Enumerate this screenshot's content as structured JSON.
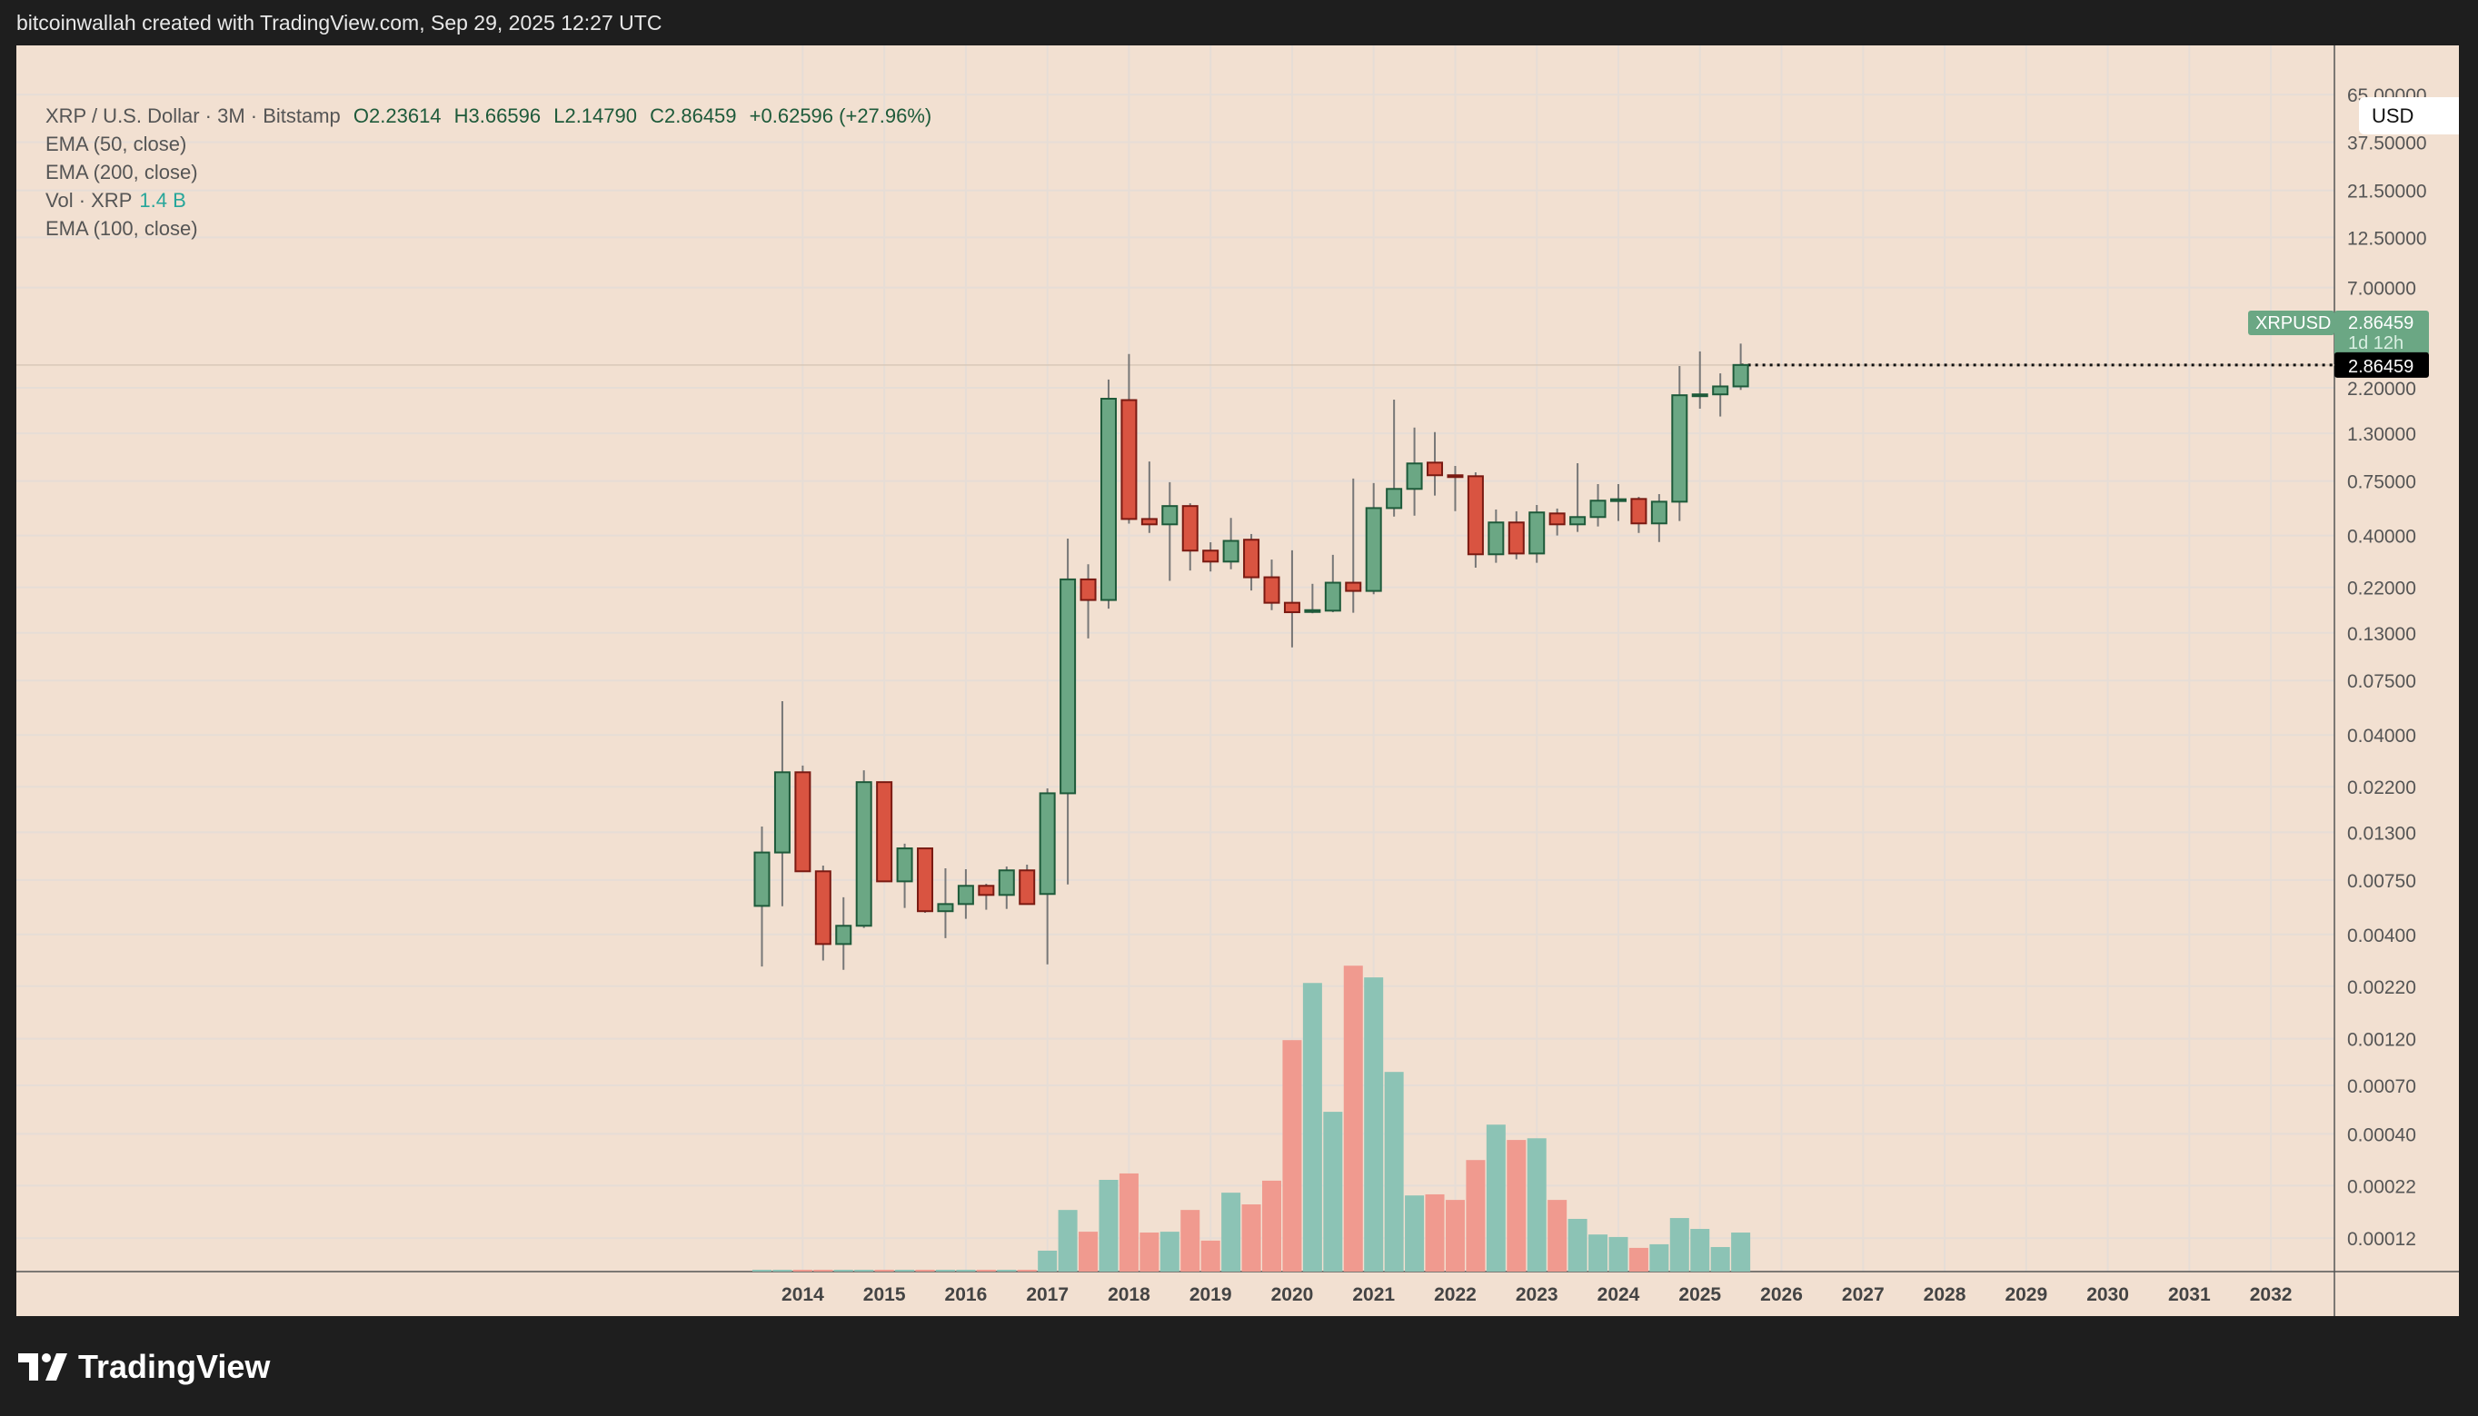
{
  "header": {
    "attribution": "bitcoinwallah created with TradingView.com, Sep 29, 2025 12:27 UTC"
  },
  "legend": {
    "symbol": "XRP / U.S. Dollar · 3M · Bitstamp",
    "open": "O2.23614",
    "high": "H3.66596",
    "low": "L2.14790",
    "close": "C2.86459",
    "change": "+0.62596 (+27.96%)",
    "ema50": "EMA (50, close)",
    "ema200": "EMA (200, close)",
    "vol_label": "Vol · XRP",
    "vol_value": "1.4 B",
    "ema100": "EMA (100, close)"
  },
  "currency_button": "USD",
  "price_tags": {
    "symbol": "XRPUSD",
    "last": "2.86459",
    "countdown": "1d 12h",
    "crosshair": "2.86459"
  },
  "branding": {
    "logo_text": "TradingView"
  },
  "colors": {
    "background": "#f2e0d1",
    "up": "#6ba784",
    "up_border": "#1e5a3a",
    "down": "#d95441",
    "down_border": "#7a1a12",
    "vol_up": "#8cc3b5",
    "vol_down": "#f09a8f",
    "last_tag": "#6ba784"
  },
  "chart_data": {
    "type": "candlestick",
    "scale": "log",
    "grid": true,
    "price_axis_labels": [
      "65.00000",
      "37.50000",
      "21.50000",
      "12.50000",
      "7.00000",
      "2.20000",
      "1.30000",
      "0.75000",
      "0.40000",
      "0.22000",
      "0.13000",
      "0.07500",
      "0.04000",
      "0.02200",
      "0.01300",
      "0.00750",
      "0.00400",
      "0.00220",
      "0.00120",
      "0.00070",
      "0.00040",
      "0.00022",
      "0.00012"
    ],
    "time_axis_labels": [
      "2014",
      "2015",
      "2016",
      "2017",
      "2018",
      "2019",
      "2020",
      "2021",
      "2022",
      "2023",
      "2024",
      "2025",
      "2026",
      "2027",
      "2028",
      "2029",
      "2030",
      "2031",
      "2032"
    ],
    "first_period": "2013-Q3",
    "interval": "3M",
    "ohlc": [
      [
        0.00556,
        0.0139,
        0.00276,
        0.0103
      ],
      [
        0.0103,
        0.0591,
        0.00554,
        0.026
      ],
      [
        0.026,
        0.0281,
        0.00829,
        0.00829
      ],
      [
        0.00829,
        0.00886,
        0.00296,
        0.00358
      ],
      [
        0.00358,
        0.00614,
        0.00266,
        0.00442
      ],
      [
        0.00442,
        0.0266,
        0.00431,
        0.0232
      ],
      [
        0.0232,
        0.0232,
        0.00738,
        0.00738
      ],
      [
        0.00738,
        0.0114,
        0.00543,
        0.0108
      ],
      [
        0.0108,
        0.0108,
        0.00513,
        0.00523
      ],
      [
        0.00523,
        0.00858,
        0.00383,
        0.00568
      ],
      [
        0.00568,
        0.00849,
        0.00479,
        0.00701
      ],
      [
        0.00701,
        0.00718,
        0.00532,
        0.00631
      ],
      [
        0.00631,
        0.00876,
        0.00537,
        0.00838
      ],
      [
        0.00838,
        0.00895,
        0.00568,
        0.00568
      ],
      [
        0.00638,
        0.0216,
        0.00283,
        0.0204
      ],
      [
        0.0204,
        0.386,
        0.00712,
        0.241
      ],
      [
        0.241,
        0.287,
        0.122,
        0.19
      ],
      [
        0.19,
        2.42,
        0.172,
        1.94
      ],
      [
        1.91,
        3.25,
        0.459,
        0.484
      ],
      [
        0.484,
        0.94,
        0.412,
        0.455
      ],
      [
        0.455,
        0.74,
        0.237,
        0.562
      ],
      [
        0.562,
        0.58,
        0.267,
        0.336
      ],
      [
        0.336,
        0.37,
        0.264,
        0.296
      ],
      [
        0.296,
        0.49,
        0.271,
        0.376
      ],
      [
        0.381,
        0.407,
        0.212,
        0.247
      ],
      [
        0.247,
        0.303,
        0.169,
        0.184
      ],
      [
        0.184,
        0.337,
        0.11,
        0.165
      ],
      [
        0.167,
        0.229,
        0.163,
        0.169
      ],
      [
        0.168,
        0.32,
        0.165,
        0.232
      ],
      [
        0.232,
        0.772,
        0.164,
        0.211
      ],
      [
        0.211,
        0.733,
        0.203,
        0.549
      ],
      [
        0.549,
        1.92,
        0.498,
        0.685
      ],
      [
        0.685,
        1.39,
        0.503,
        0.919
      ],
      [
        0.928,
        1.32,
        0.634,
        0.802
      ],
      [
        0.802,
        0.893,
        0.53,
        0.796
      ],
      [
        0.793,
        0.83,
        0.276,
        0.322
      ],
      [
        0.322,
        0.54,
        0.292,
        0.465
      ],
      [
        0.465,
        0.529,
        0.304,
        0.325
      ],
      [
        0.325,
        0.569,
        0.292,
        0.522
      ],
      [
        0.516,
        0.546,
        0.4,
        0.455
      ],
      [
        0.455,
        0.922,
        0.417,
        0.495
      ],
      [
        0.495,
        0.724,
        0.444,
        0.598
      ],
      [
        0.598,
        0.724,
        0.473,
        0.608
      ],
      [
        0.61,
        0.625,
        0.412,
        0.46
      ],
      [
        0.46,
        0.645,
        0.371,
        0.591
      ],
      [
        0.591,
        2.83,
        0.473,
        2.02
      ],
      [
        2.02,
        3.35,
        1.73,
        2.04
      ],
      [
        2.04,
        2.6,
        1.58,
        2.236
      ],
      [
        2.23614,
        3.66596,
        2.1479,
        2.86459
      ]
    ],
    "volume_billions": [
      0.03,
      0.03,
      0.03,
      0.03,
      0.03,
      0.03,
      0.03,
      0.03,
      0.03,
      0.03,
      0.03,
      0.03,
      0.03,
      0.03,
      0.75,
      2.21,
      1.43,
      3.29,
      3.52,
      1.4,
      1.43,
      2.21,
      1.11,
      2.83,
      2.41,
      3.26,
      8.3,
      10.35,
      5.73,
      10.97,
      10.55,
      7.16,
      2.73,
      2.77,
      2.57,
      4.0,
      5.27,
      4.72,
      4.78,
      2.57,
      1.89,
      1.33,
      1.24,
      0.85,
      0.98,
      1.92,
      1.53,
      0.88,
      1.4
    ],
    "last_price": 2.86459
  }
}
